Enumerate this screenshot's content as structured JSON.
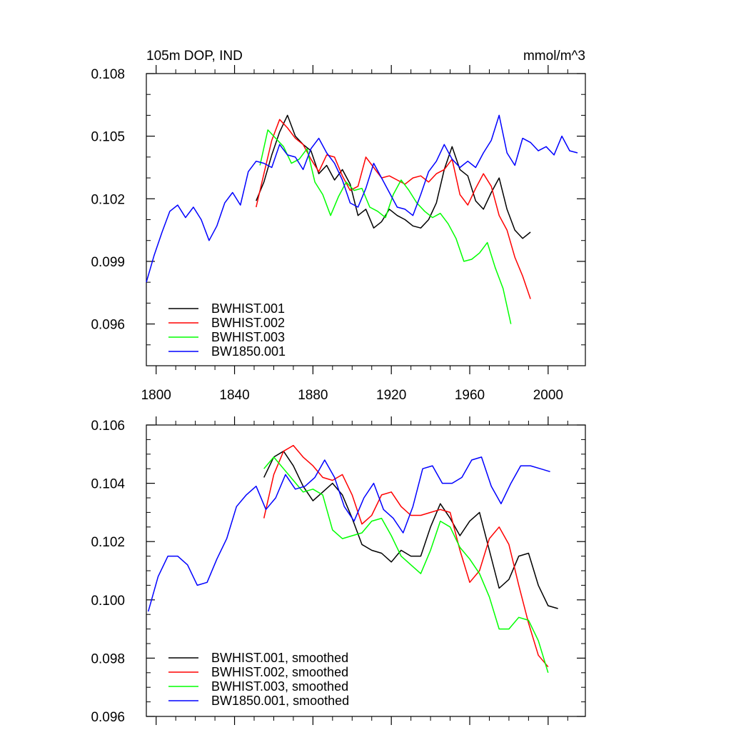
{
  "chart_data": [
    {
      "type": "line",
      "title": "105m DOP, IND",
      "units": "mmol/m^3",
      "xlabel": "",
      "ylabel": "",
      "xlim": [
        1795,
        2019
      ],
      "ylim": [
        0.094,
        0.108
      ],
      "x_ticks": [
        1800,
        1840,
        1880,
        1920,
        1960,
        2000
      ],
      "y_ticks": [
        0.096,
        0.099,
        0.102,
        0.105,
        0.108
      ],
      "y_tick_labels": [
        "0.096",
        "0.099",
        "0.102",
        "0.105",
        "0.108"
      ],
      "legend_position": "bottom-left",
      "series": [
        {
          "name": "BWHIST.001",
          "color": "#000000",
          "x_start": 1851,
          "x_step": 4,
          "values": [
            0.1019,
            0.1028,
            0.1041,
            0.1052,
            0.106,
            0.105,
            0.1046,
            0.1043,
            0.1032,
            0.1036,
            0.1029,
            0.1034,
            0.1027,
            0.1012,
            0.1015,
            0.1006,
            0.1009,
            0.1015,
            0.1012,
            0.101,
            0.1007,
            0.1006,
            0.101,
            0.1018,
            0.1034,
            0.1045,
            0.1034,
            0.1031,
            0.1019,
            0.1015,
            0.1023,
            0.103,
            0.1015,
            0.1005,
            0.1001,
            0.1004
          ]
        },
        {
          "name": "BWHIST.002",
          "color": "#ff0000",
          "x_start": 1851,
          "x_step": 4,
          "values": [
            0.1016,
            0.1032,
            0.1048,
            0.1058,
            0.1054,
            0.1049,
            0.1046,
            0.1039,
            0.1033,
            0.1041,
            0.104,
            0.1031,
            0.1024,
            0.1026,
            0.104,
            0.1035,
            0.103,
            0.1031,
            0.1029,
            0.1027,
            0.103,
            0.1031,
            0.1028,
            0.1032,
            0.1034,
            0.1039,
            0.1022,
            0.1017,
            0.1025,
            0.1032,
            0.1026,
            0.1012,
            0.1005,
            0.0992,
            0.0983,
            0.0972
          ]
        },
        {
          "name": "BWHIST.003",
          "color": "#00ff00",
          "x_start": 1853,
          "x_step": 4,
          "values": [
            0.1036,
            0.1053,
            0.1049,
            0.1045,
            0.1037,
            0.1039,
            0.1044,
            0.1028,
            0.1022,
            0.1012,
            0.1021,
            0.1028,
            0.1024,
            0.1025,
            0.1016,
            0.1014,
            0.1011,
            0.1022,
            0.1029,
            0.1024,
            0.1018,
            0.1014,
            0.1011,
            0.1013,
            0.1008,
            0.1001,
            0.099,
            0.0991,
            0.0994,
            0.0999,
            0.0987,
            0.0977,
            0.096
          ]
        },
        {
          "name": "BW1850.001",
          "color": "#0000ff",
          "x_start": 1795,
          "x_step": 4,
          "values": [
            0.098,
            0.0993,
            0.1004,
            0.1014,
            0.1017,
            0.1011,
            0.1016,
            0.101,
            0.1,
            0.1007,
            0.1018,
            0.1023,
            0.1017,
            0.1033,
            0.1038,
            0.1037,
            0.1035,
            0.1046,
            0.1041,
            0.104,
            0.1034,
            0.1044,
            0.1049,
            0.1042,
            0.1037,
            0.1029,
            0.1018,
            0.1016,
            0.1025,
            0.1037,
            0.103,
            0.1023,
            0.1016,
            0.1015,
            0.1012,
            0.1022,
            0.1033,
            0.1038,
            0.1046,
            0.1039,
            0.1035,
            0.1038,
            0.1035,
            0.1042,
            0.1048,
            0.106,
            0.1042,
            0.1036,
            0.1049,
            0.1047,
            0.1043,
            0.1045,
            0.1041,
            0.105,
            0.1043,
            0.1042
          ]
        }
      ]
    },
    {
      "type": "line",
      "title": "",
      "xlabel": "",
      "ylabel": "",
      "xlim": [
        1795,
        2019
      ],
      "ylim": [
        0.096,
        0.106
      ],
      "x_ticks": [
        1800,
        1840,
        1880,
        1920,
        1960,
        2000
      ],
      "y_ticks": [
        0.096,
        0.098,
        0.1,
        0.102,
        0.104,
        0.106
      ],
      "y_tick_labels": [
        "0.096",
        "0.098",
        "0.100",
        "0.102",
        "0.104",
        "0.106"
      ],
      "legend_position": "bottom-left",
      "series": [
        {
          "name": "BWHIST.001, smoothed",
          "color": "#000000",
          "x_start": 1855,
          "x_step": 5,
          "values": [
            0.1042,
            0.1049,
            0.1051,
            0.1046,
            0.1039,
            0.1034,
            0.1037,
            0.104,
            0.1036,
            0.1028,
            0.1019,
            0.1017,
            0.1016,
            0.1013,
            0.1017,
            0.1015,
            0.1015,
            0.1025,
            0.1033,
            0.1028,
            0.1022,
            0.1027,
            0.103,
            0.1017,
            0.1004,
            0.1007,
            0.1015,
            0.1016,
            0.1005,
            0.0998,
            0.0997
          ]
        },
        {
          "name": "BWHIST.002, smoothed",
          "color": "#ff0000",
          "x_start": 1855,
          "x_step": 5,
          "values": [
            0.1028,
            0.1043,
            0.1051,
            0.1053,
            0.1049,
            0.1046,
            0.1042,
            0.1041,
            0.1043,
            0.1036,
            0.1026,
            0.1029,
            0.1036,
            0.1037,
            0.1032,
            0.1029,
            0.1029,
            0.103,
            0.1031,
            0.103,
            0.1017,
            0.1006,
            0.101,
            0.1021,
            0.1025,
            0.1019,
            0.1005,
            0.0992,
            0.0981,
            0.0977
          ]
        },
        {
          "name": "BWHIST.003, smoothed",
          "color": "#00ff00",
          "x_start": 1855,
          "x_step": 5,
          "values": [
            0.1045,
            0.1049,
            0.1045,
            0.1041,
            0.1037,
            0.1038,
            0.1036,
            0.1024,
            0.1021,
            0.1022,
            0.1023,
            0.1027,
            0.1028,
            0.1022,
            0.1015,
            0.1012,
            0.1009,
            0.1017,
            0.1027,
            0.1025,
            0.1018,
            0.1014,
            0.1009,
            0.1001,
            0.099,
            0.099,
            0.0994,
            0.0993,
            0.0986,
            0.0975
          ]
        },
        {
          "name": "BW1850.001, smoothed",
          "color": "#0000ff",
          "x_start": 1796,
          "x_step": 5,
          "values": [
            0.0996,
            0.1008,
            0.1015,
            0.1015,
            0.1012,
            0.1005,
            0.1006,
            0.1014,
            0.1021,
            0.1032,
            0.1036,
            0.1039,
            0.1031,
            0.1035,
            0.1043,
            0.1038,
            0.1039,
            0.1042,
            0.1048,
            0.1042,
            0.1032,
            0.1027,
            0.1035,
            0.104,
            0.1031,
            0.1028,
            0.1023,
            0.1032,
            0.1045,
            0.1046,
            0.104,
            0.104,
            0.1042,
            0.1048,
            0.1049,
            0.1039,
            0.1033,
            0.104,
            0.1046,
            0.1046,
            0.1045,
            0.1044
          ]
        }
      ]
    }
  ]
}
